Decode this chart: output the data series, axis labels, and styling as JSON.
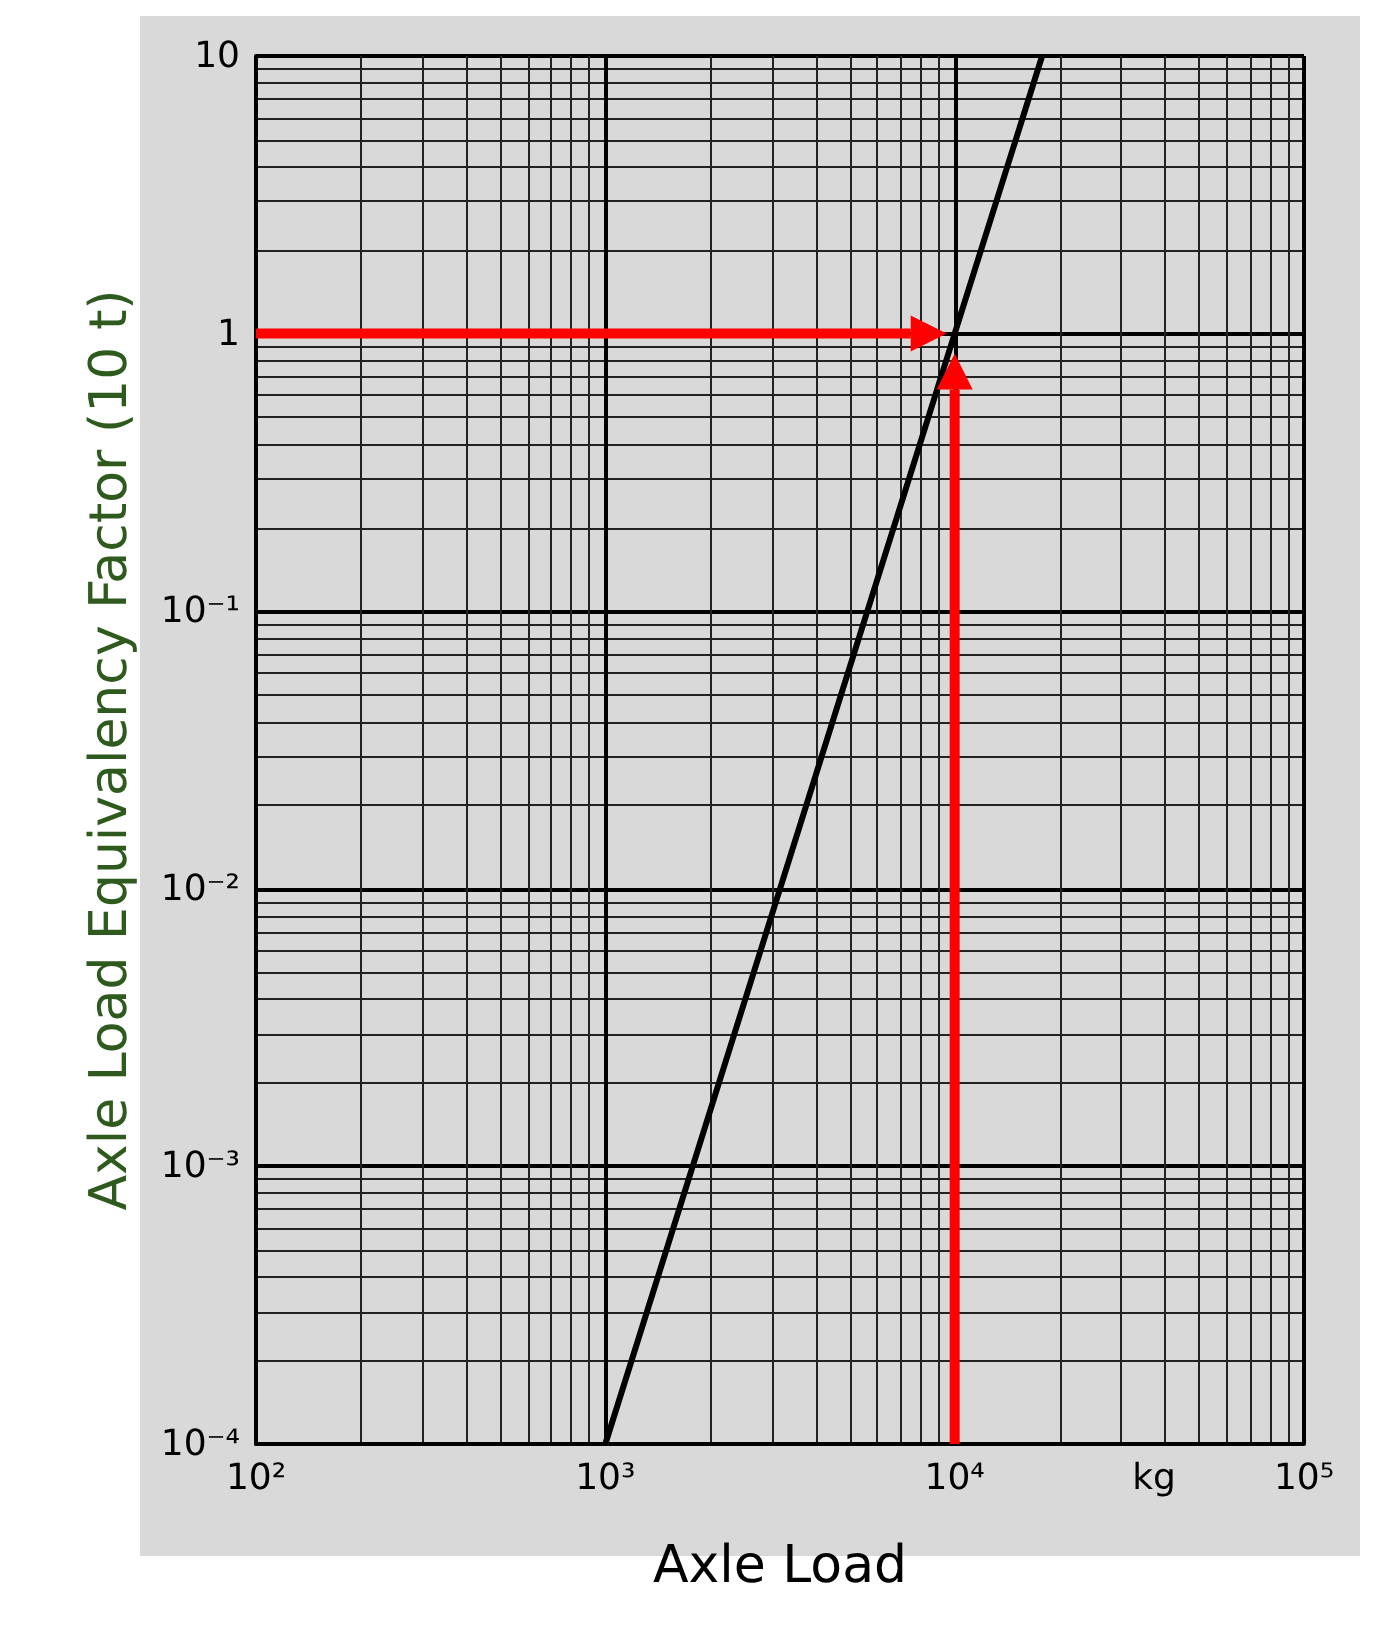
{
  "chart_data": {
    "type": "line",
    "xlabel": "Axle Load",
    "ylabel": "Axle Load Equivalency Factor (10 t)",
    "log": "xy",
    "grid": true,
    "xlim": [
      100,
      100000
    ],
    "ylim": [
      0.0001,
      10
    ],
    "xticks": [
      {
        "value": 100,
        "label": "10²"
      },
      {
        "value": 1000,
        "label": "10³"
      },
      {
        "value": 10000,
        "label": "10⁴"
      },
      {
        "value": 100000,
        "label": "10⁵"
      }
    ],
    "yticks": [
      {
        "value": 0.0001,
        "label": "10⁻⁴"
      },
      {
        "value": 0.001,
        "label": "10⁻³"
      },
      {
        "value": 0.01,
        "label": "10⁻²"
      },
      {
        "value": 0.1,
        "label": "10⁻¹"
      },
      1,
      10
    ],
    "annotations": [
      "kg"
    ],
    "series": [
      {
        "color": "#000000",
        "x": [
          1000,
          10000,
          17800
        ],
        "values": [
          0.0001,
          1,
          10
        ]
      }
    ]
  }
}
